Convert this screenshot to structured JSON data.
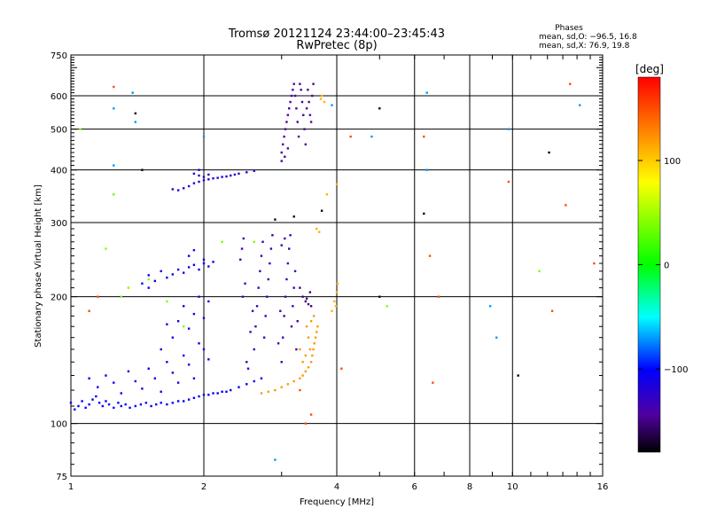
{
  "chart_data": {
    "type": "scatter",
    "title": "Tromsø 20121124 23:44:00–23:45:43",
    "subtitle": "RwPretec (8p)",
    "xlabel": "Frequency [MHz]",
    "ylabel": "Stationary phase Virtual Height [km]",
    "x_scale": "log",
    "y_scale": "log",
    "xlim": [
      1,
      16
    ],
    "ylim": [
      75,
      750
    ],
    "x_ticks": [
      1,
      2,
      4,
      6,
      8,
      10,
      16
    ],
    "x_grid": [
      2,
      4,
      6,
      8,
      10
    ],
    "y_ticks": [
      75,
      100,
      200,
      300,
      400,
      500,
      600,
      750
    ],
    "y_grid": [
      100,
      200,
      300,
      400,
      500,
      600
    ],
    "grid": true,
    "stats_header": "Phases",
    "stats_lines": [
      "mean, sd,O:  −96.5, 16.8",
      "mean, sd,X:  76.9, 19.8"
    ],
    "colorbar": {
      "unit": "[deg]",
      "range": [
        -180,
        180
      ],
      "ticks": [
        100,
        0,
        -100
      ],
      "colors": [
        "#ff0000",
        "#ff8000",
        "#ffff00",
        "#00ff00",
        "#00ffff",
        "#0000ff",
        "#5000a0",
        "#000000"
      ]
    },
    "series": [
      {
        "color_phase": -90,
        "points": [
          [
            1.0,
            112
          ],
          [
            1.02,
            108
          ],
          [
            1.04,
            110
          ],
          [
            1.06,
            113
          ],
          [
            1.08,
            109
          ],
          [
            1.1,
            111
          ],
          [
            1.12,
            114
          ],
          [
            1.14,
            116
          ],
          [
            1.16,
            112
          ],
          [
            1.18,
            110
          ],
          [
            1.2,
            113
          ],
          [
            1.22,
            111
          ],
          [
            1.25,
            109
          ],
          [
            1.28,
            112
          ],
          [
            1.3,
            110
          ],
          [
            1.33,
            111
          ],
          [
            1.36,
            109
          ],
          [
            1.4,
            110
          ],
          [
            1.44,
            111
          ],
          [
            1.48,
            112
          ],
          [
            1.52,
            110
          ],
          [
            1.56,
            111
          ],
          [
            1.6,
            112
          ],
          [
            1.65,
            111
          ],
          [
            1.7,
            112
          ],
          [
            1.75,
            113
          ],
          [
            1.8,
            113
          ],
          [
            1.85,
            114
          ],
          [
            1.9,
            115
          ],
          [
            1.95,
            116
          ],
          [
            2.0,
            117
          ],
          [
            2.05,
            117
          ],
          [
            2.1,
            118
          ],
          [
            2.15,
            118
          ],
          [
            2.2,
            119
          ],
          [
            2.25,
            119
          ],
          [
            2.3,
            120
          ],
          [
            2.4,
            122
          ],
          [
            2.5,
            124
          ],
          [
            2.6,
            126
          ],
          [
            2.7,
            128
          ]
        ]
      },
      {
        "color_phase": -100,
        "points": [
          [
            1.1,
            128
          ],
          [
            1.15,
            122
          ],
          [
            1.2,
            130
          ],
          [
            1.25,
            125
          ],
          [
            1.3,
            118
          ],
          [
            1.35,
            133
          ],
          [
            1.4,
            126
          ],
          [
            1.45,
            121
          ],
          [
            1.5,
            135
          ],
          [
            1.55,
            128
          ],
          [
            1.6,
            119
          ],
          [
            1.65,
            140
          ],
          [
            1.7,
            132
          ],
          [
            1.75,
            125
          ],
          [
            1.8,
            145
          ],
          [
            1.85,
            138
          ],
          [
            1.9,
            128
          ],
          [
            1.95,
            155
          ],
          [
            2.0,
            150
          ],
          [
            2.05,
            142
          ],
          [
            1.7,
            160
          ],
          [
            1.75,
            175
          ],
          [
            1.8,
            190
          ],
          [
            1.85,
            168
          ],
          [
            1.9,
            182
          ],
          [
            1.95,
            200
          ],
          [
            2.0,
            178
          ],
          [
            2.05,
            195
          ],
          [
            1.6,
            150
          ],
          [
            1.65,
            172
          ]
        ]
      },
      {
        "color_phase": -95,
        "points": [
          [
            1.5,
            225
          ],
          [
            1.55,
            218
          ],
          [
            1.6,
            230
          ],
          [
            1.65,
            222
          ],
          [
            1.7,
            226
          ],
          [
            1.75,
            232
          ],
          [
            1.8,
            228
          ],
          [
            1.85,
            235
          ],
          [
            1.9,
            238
          ],
          [
            1.95,
            232
          ],
          [
            2.0,
            240
          ],
          [
            2.05,
            236
          ],
          [
            2.1,
            242
          ],
          [
            1.45,
            215
          ],
          [
            1.5,
            210
          ],
          [
            1.85,
            250
          ],
          [
            1.9,
            258
          ],
          [
            2.0,
            245
          ]
        ]
      },
      {
        "color_phase": -110,
        "points": [
          [
            1.7,
            360
          ],
          [
            1.75,
            358
          ],
          [
            1.8,
            362
          ],
          [
            1.85,
            366
          ],
          [
            1.9,
            372
          ],
          [
            1.95,
            375
          ],
          [
            2.0,
            378
          ],
          [
            2.05,
            380
          ],
          [
            2.1,
            382
          ],
          [
            2.15,
            383
          ],
          [
            2.2,
            385
          ],
          [
            2.25,
            386
          ],
          [
            2.3,
            388
          ],
          [
            2.35,
            390
          ],
          [
            2.4,
            392
          ],
          [
            2.5,
            395
          ],
          [
            2.6,
            398
          ],
          [
            1.9,
            392
          ],
          [
            1.95,
            388
          ],
          [
            2.0,
            385
          ],
          [
            2.05,
            390
          ],
          [
            1.95,
            400
          ]
        ]
      },
      {
        "color_phase": -120,
        "points": [
          [
            2.6,
            150
          ],
          [
            2.62,
            170
          ],
          [
            2.64,
            190
          ],
          [
            2.66,
            210
          ],
          [
            2.68,
            230
          ],
          [
            2.7,
            250
          ],
          [
            2.72,
            270
          ],
          [
            2.74,
            160
          ],
          [
            2.76,
            180
          ],
          [
            2.78,
            200
          ],
          [
            2.8,
            220
          ],
          [
            2.82,
            240
          ],
          [
            2.84,
            260
          ],
          [
            2.86,
            280
          ],
          [
            2.55,
            165
          ],
          [
            2.58,
            185
          ],
          [
            2.5,
            140
          ],
          [
            2.52,
            135
          ],
          [
            2.45,
            200
          ],
          [
            2.48,
            215
          ],
          [
            2.42,
            245
          ],
          [
            2.44,
            260
          ],
          [
            2.46,
            275
          ]
        ]
      },
      {
        "color_phase": -125,
        "points": [
          [
            3.0,
            140
          ],
          [
            3.02,
            160
          ],
          [
            3.04,
            180
          ],
          [
            3.06,
            200
          ],
          [
            3.08,
            220
          ],
          [
            3.1,
            240
          ],
          [
            3.12,
            260
          ],
          [
            3.14,
            280
          ],
          [
            3.16,
            170
          ],
          [
            3.18,
            190
          ],
          [
            3.2,
            210
          ],
          [
            3.22,
            230
          ],
          [
            3.24,
            150
          ],
          [
            3.26,
            175
          ],
          [
            2.95,
            155
          ],
          [
            2.98,
            185
          ],
          [
            3.0,
            265
          ],
          [
            3.05,
            275
          ]
        ]
      },
      {
        "color_phase": -130,
        "points": [
          [
            3.0,
            440
          ],
          [
            3.02,
            460
          ],
          [
            3.04,
            480
          ],
          [
            3.06,
            500
          ],
          [
            3.08,
            520
          ],
          [
            3.1,
            540
          ],
          [
            3.12,
            560
          ],
          [
            3.14,
            580
          ],
          [
            3.16,
            600
          ],
          [
            3.18,
            620
          ],
          [
            3.2,
            640
          ],
          [
            3.22,
            600
          ],
          [
            3.24,
            560
          ],
          [
            3.26,
            520
          ],
          [
            3.28,
            480
          ],
          [
            3.3,
            640
          ],
          [
            3.32,
            620
          ],
          [
            3.34,
            580
          ],
          [
            3.36,
            540
          ],
          [
            3.38,
            500
          ],
          [
            3.4,
            460
          ],
          [
            3.42,
            560
          ],
          [
            3.44,
            620
          ],
          [
            3.46,
            580
          ],
          [
            3.48,
            540
          ],
          [
            3.5,
            520
          ],
          [
            3.52,
            600
          ],
          [
            3.54,
            640
          ],
          [
            3.0,
            420
          ],
          [
            3.05,
            430
          ],
          [
            3.1,
            450
          ]
        ]
      },
      {
        "color_phase": -140,
        "points": [
          [
            3.3,
            210
          ],
          [
            3.35,
            200
          ],
          [
            3.4,
            195
          ],
          [
            3.45,
            192
          ],
          [
            3.5,
            190
          ],
          [
            3.48,
            205
          ],
          [
            3.42,
            198
          ]
        ]
      },
      {
        "color_phase": 120,
        "points": [
          [
            2.7,
            118
          ],
          [
            2.8,
            119
          ],
          [
            2.9,
            120
          ],
          [
            3.0,
            122
          ],
          [
            3.1,
            124
          ],
          [
            3.2,
            126
          ],
          [
            3.3,
            128
          ],
          [
            3.35,
            130
          ],
          [
            3.4,
            133
          ],
          [
            3.45,
            136
          ],
          [
            3.5,
            140
          ],
          [
            3.52,
            145
          ],
          [
            3.54,
            150
          ],
          [
            3.56,
            155
          ],
          [
            3.58,
            160
          ],
          [
            3.6,
            165
          ],
          [
            3.62,
            170
          ],
          [
            3.45,
            160
          ],
          [
            3.48,
            150
          ],
          [
            3.4,
            145
          ],
          [
            3.35,
            140
          ],
          [
            3.3,
            150
          ],
          [
            3.42,
            170
          ],
          [
            3.5,
            175
          ],
          [
            3.55,
            180
          ]
        ]
      },
      {
        "color_phase": 110,
        "points": [
          [
            3.9,
            185
          ],
          [
            3.95,
            195
          ],
          [
            4.0,
            205
          ],
          [
            4.02,
            215
          ],
          [
            3.98,
            190
          ],
          [
            3.6,
            290
          ],
          [
            3.65,
            285
          ],
          [
            3.7,
            600
          ],
          [
            3.75,
            580
          ],
          [
            3.68,
            590
          ],
          [
            4.0,
            370
          ],
          [
            3.8,
            350
          ]
        ]
      },
      {
        "color_phase": -60,
        "points": [
          [
            1.25,
            560
          ],
          [
            1.25,
            410
          ],
          [
            1.25,
            350
          ],
          [
            1.38,
            610
          ],
          [
            1.4,
            520
          ],
          [
            1.45,
            400
          ],
          [
            2.0,
            480
          ],
          [
            3.9,
            570
          ],
          [
            4.8,
            480
          ],
          [
            6.4,
            610
          ],
          [
            9.8,
            500
          ],
          [
            14.2,
            570
          ],
          [
            8.9,
            190
          ],
          [
            9.2,
            160
          ],
          [
            6.4,
            400
          ],
          [
            2.9,
            82
          ]
        ]
      },
      {
        "color_phase": 40,
        "points": [
          [
            1.05,
            500
          ],
          [
            1.25,
            350
          ],
          [
            1.2,
            260
          ],
          [
            1.35,
            210
          ],
          [
            1.3,
            200
          ],
          [
            1.65,
            195
          ],
          [
            1.5,
            220
          ],
          [
            1.8,
            170
          ],
          [
            2.6,
            270
          ],
          [
            2.2,
            270
          ],
          [
            5.2,
            190
          ],
          [
            11.5,
            230
          ]
        ]
      },
      {
        "color_phase": 150,
        "points": [
          [
            1.25,
            630
          ],
          [
            1.1,
            185
          ],
          [
            1.15,
            200
          ],
          [
            6.3,
            480
          ],
          [
            6.5,
            250
          ],
          [
            6.6,
            125
          ],
          [
            9.8,
            375
          ],
          [
            13.5,
            640
          ],
          [
            15.3,
            240
          ],
          [
            13.2,
            330
          ],
          [
            4.3,
            480
          ],
          [
            4.1,
            135
          ],
          [
            3.5,
            105
          ],
          [
            3.3,
            120
          ],
          [
            3.4,
            100
          ],
          [
            12.3,
            185
          ],
          [
            6.8,
            200
          ]
        ]
      },
      {
        "color_phase": -170,
        "points": [
          [
            1.4,
            545
          ],
          [
            5.0,
            560
          ],
          [
            6.3,
            315
          ],
          [
            12.1,
            440
          ],
          [
            5.0,
            200
          ],
          [
            10.3,
            130
          ],
          [
            3.7,
            320
          ],
          [
            3.2,
            310
          ],
          [
            2.9,
            305
          ],
          [
            1.45,
            400
          ]
        ]
      }
    ]
  }
}
